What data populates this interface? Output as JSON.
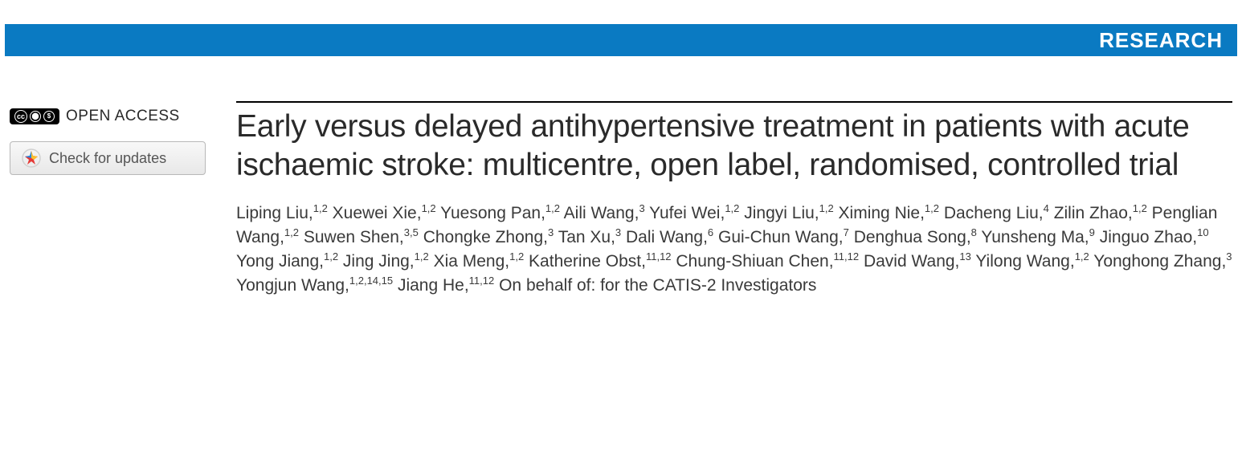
{
  "banner": {
    "label": "RESEARCH",
    "background_color": "#0a7ac2",
    "text_color": "#ffffff"
  },
  "left_sidebar": {
    "open_access_label": "OPEN ACCESS",
    "cc_text": "cc",
    "updates_button_label": "Check for updates"
  },
  "article": {
    "title": "Early versus delayed antihypertensive treatment in patients with acute ischaemic stroke: multicentre, open label, randomised, controlled trial",
    "authors": [
      {
        "name": "Liping Liu",
        "aff": "1,2"
      },
      {
        "name": "Xuewei Xie",
        "aff": "1,2"
      },
      {
        "name": "Yuesong Pan",
        "aff": "1,2"
      },
      {
        "name": "Aili Wang",
        "aff": "3"
      },
      {
        "name": "Yufei Wei",
        "aff": "1,2"
      },
      {
        "name": "Jingyi Liu",
        "aff": "1,2"
      },
      {
        "name": "Ximing Nie",
        "aff": "1,2"
      },
      {
        "name": "Dacheng Liu",
        "aff": "4"
      },
      {
        "name": "Zilin Zhao",
        "aff": "1,2"
      },
      {
        "name": "Penglian Wang",
        "aff": "1,2"
      },
      {
        "name": "Suwen Shen",
        "aff": "3,5"
      },
      {
        "name": "Chongke Zhong",
        "aff": "3"
      },
      {
        "name": "Tan Xu",
        "aff": "3"
      },
      {
        "name": "Dali Wang",
        "aff": "6"
      },
      {
        "name": "Gui-Chun Wang",
        "aff": "7"
      },
      {
        "name": "Denghua Song",
        "aff": "8"
      },
      {
        "name": "Yunsheng Ma",
        "aff": "9"
      },
      {
        "name": "Jinguo Zhao",
        "aff": "10"
      },
      {
        "name": "Yong Jiang",
        "aff": "1,2"
      },
      {
        "name": "Jing Jing",
        "aff": "1,2"
      },
      {
        "name": "Xia Meng",
        "aff": "1,2"
      },
      {
        "name": "Katherine Obst",
        "aff": "11,12"
      },
      {
        "name": "Chung-Shiuan Chen",
        "aff": "11,12"
      },
      {
        "name": "David Wang",
        "aff": "13"
      },
      {
        "name": "Yilong Wang",
        "aff": "1,2"
      },
      {
        "name": "Yonghong Zhang",
        "aff": "3"
      },
      {
        "name": "Yongjun Wang",
        "aff": "1,2,14,15"
      },
      {
        "name": "Jiang He",
        "aff": "11,12"
      }
    ],
    "on_behalf": "On behalf of: for the CATIS-2 Investigators"
  },
  "colors": {
    "banner_bg": "#0a7ac2",
    "text_primary": "#2a2a2a",
    "text_authors": "#3a3a3a",
    "button_border": "#b8b8b8",
    "rule": "#000000"
  },
  "typography": {
    "title_fontsize": 39,
    "author_fontsize": 21,
    "banner_fontsize": 26
  }
}
